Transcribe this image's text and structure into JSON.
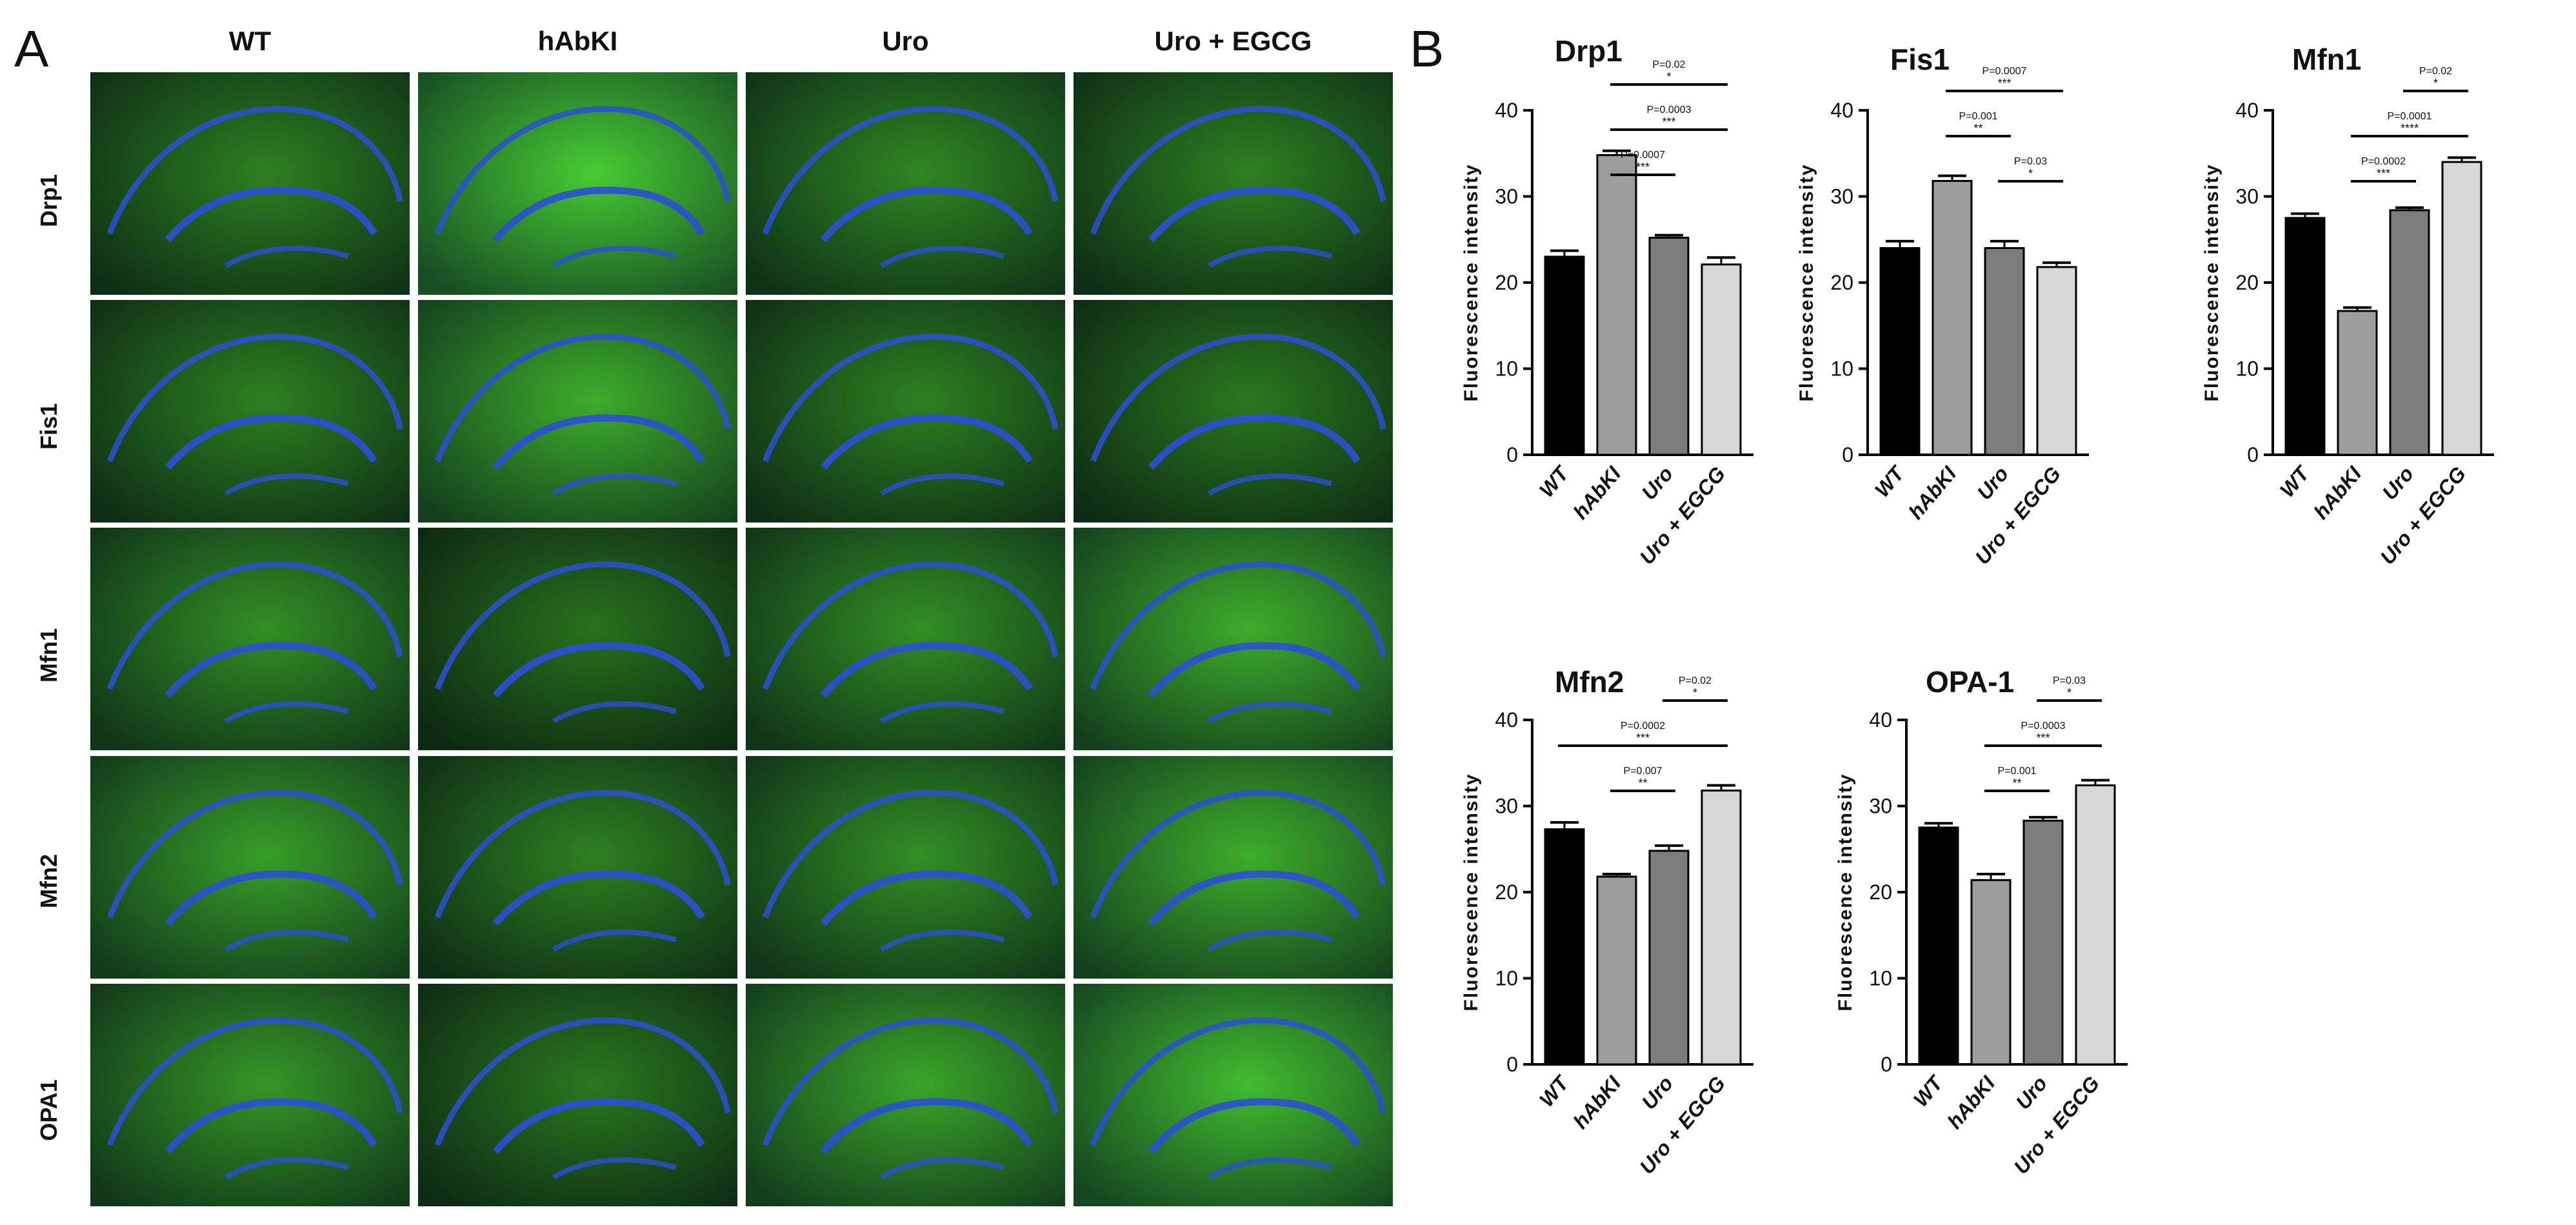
{
  "panels": {
    "a": "A",
    "b": "B"
  },
  "micrographs": {
    "columns": [
      "WT",
      "hAbKI",
      "Uro",
      "Uro + EGCG"
    ],
    "rows": [
      "Drp1",
      "Fis1",
      "Mfn1",
      "Mfn2",
      "OPA1"
    ],
    "brightness": [
      [
        0.45,
        0.95,
        0.5,
        0.45
      ],
      [
        0.45,
        0.75,
        0.45,
        0.4
      ],
      [
        0.55,
        0.35,
        0.55,
        0.75
      ],
      [
        0.65,
        0.45,
        0.55,
        0.75
      ],
      [
        0.6,
        0.4,
        0.7,
        0.85
      ]
    ]
  },
  "colors": {
    "WT": "#000000",
    "hAbKI": "#9d9d9d",
    "Uro": "#7d7d7d",
    "Uro + EGCG": "#d7d7d7",
    "tissue": "#3aa12a",
    "nuclei": "#2b4fd6"
  },
  "chart_data": [
    {
      "type": "bar",
      "title": "Drp1",
      "ylabel": "Fluorescence intensity",
      "categories": [
        "WT",
        "hAbKI",
        "Uro",
        "Uro + EGCG"
      ],
      "values": [
        23,
        34.8,
        25.2,
        22.1
      ],
      "errors": [
        0.7,
        0.5,
        0.3,
        0.8
      ],
      "ylim": [
        0,
        40
      ],
      "yticks": [
        0,
        10,
        20,
        30,
        40
      ],
      "annotations": [
        {
          "from": 2,
          "to": 4,
          "p": "P=0.02",
          "stars": "*"
        },
        {
          "from": 2,
          "to": 4,
          "p": "P=0.0003",
          "stars": "***"
        },
        {
          "from": 2,
          "to": 3,
          "p": "P=0.0007",
          "stars": "***"
        }
      ]
    },
    {
      "type": "bar",
      "title": "Fis1",
      "ylabel": "Fluorescence intensity",
      "categories": [
        "WT",
        "hAbKI",
        "Uro",
        "Uro + EGCG"
      ],
      "values": [
        24,
        31.8,
        24,
        21.8
      ],
      "errors": [
        0.8,
        0.6,
        0.8,
        0.5
      ],
      "ylim": [
        0,
        40
      ],
      "yticks": [
        0,
        10,
        20,
        30,
        40
      ],
      "annotations": [
        {
          "from": 2,
          "to": 4,
          "p": "P=0.0007",
          "stars": "***"
        },
        {
          "from": 2,
          "to": 3,
          "p": "P=0.001",
          "stars": "**"
        },
        {
          "from": 3,
          "to": 4,
          "p": "P=0.03",
          "stars": "*"
        }
      ]
    },
    {
      "type": "bar",
      "title": "Mfn1",
      "ylabel": "Fluorescence intensity",
      "categories": [
        "WT",
        "hAbKI",
        "Uro",
        "Uro + EGCG"
      ],
      "values": [
        27.5,
        16.7,
        28.4,
        34
      ],
      "errors": [
        0.5,
        0.4,
        0.3,
        0.5
      ],
      "ylim": [
        0,
        40
      ],
      "yticks": [
        0,
        10,
        20,
        30,
        40
      ],
      "annotations": [
        {
          "from": 3,
          "to": 4,
          "p": "P=0.02",
          "stars": "*"
        },
        {
          "from": 2,
          "to": 4,
          "p": "P=0.0001",
          "stars": "****"
        },
        {
          "from": 2,
          "to": 3,
          "p": "P=0.0002",
          "stars": "***"
        }
      ]
    },
    {
      "type": "bar",
      "title": "Mfn2",
      "ylabel": "Fluorescence intensity",
      "categories": [
        "WT",
        "hAbKI",
        "Uro",
        "Uro + EGCG"
      ],
      "values": [
        27.3,
        21.8,
        24.8,
        31.8
      ],
      "errors": [
        0.8,
        0.3,
        0.6,
        0.6
      ],
      "ylim": [
        0,
        40
      ],
      "yticks": [
        0,
        10,
        20,
        30,
        40
      ],
      "annotations": [
        {
          "from": 3,
          "to": 4,
          "p": "P=0.02",
          "stars": "*"
        },
        {
          "from": 1,
          "to": 4,
          "p": "P=0.0002",
          "stars": "***"
        },
        {
          "from": 2,
          "to": 3,
          "p": "P=0.007",
          "stars": "**"
        }
      ]
    },
    {
      "type": "bar",
      "title": "OPA-1",
      "ylabel": "Fluorescence intensity",
      "categories": [
        "WT",
        "hAbKI",
        "Uro",
        "Uro + EGCG"
      ],
      "values": [
        27.5,
        21.4,
        28.3,
        32.4
      ],
      "errors": [
        0.5,
        0.7,
        0.4,
        0.6
      ],
      "ylim": [
        0,
        40
      ],
      "yticks": [
        0,
        10,
        20,
        30,
        40
      ],
      "annotations": [
        {
          "from": 3,
          "to": 4,
          "p": "P=0.03",
          "stars": "*"
        },
        {
          "from": 2,
          "to": 4,
          "p": "P=0.0003",
          "stars": "***"
        },
        {
          "from": 2,
          "to": 3,
          "p": "P=0.001",
          "stars": "**"
        }
      ]
    }
  ]
}
